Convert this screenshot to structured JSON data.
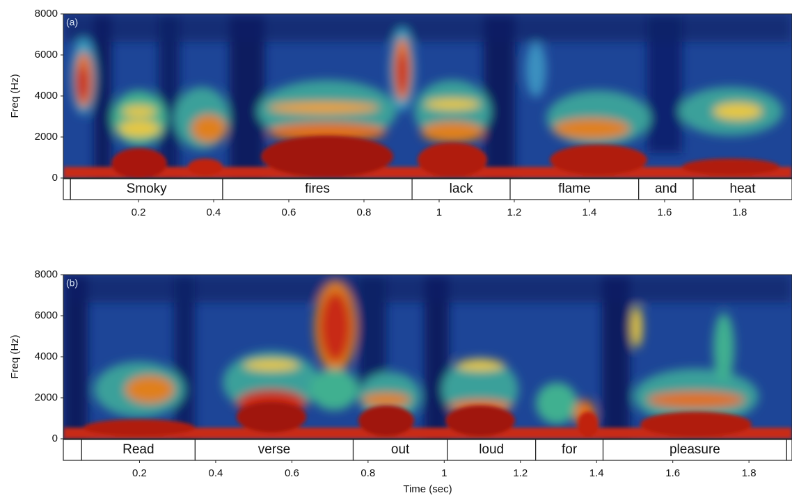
{
  "chart_data": [
    {
      "type": "spectrogram",
      "panel_label": "(a)",
      "ylabel": "Freq (Hz)",
      "ylim": [
        0,
        8000
      ],
      "yticks": [
        0,
        2000,
        4000,
        6000,
        8000
      ],
      "xlim": [
        0,
        1.939
      ],
      "xticks": [
        0.2,
        0.4,
        0.6,
        0.8,
        1,
        1.2,
        1.4,
        1.6,
        1.8
      ],
      "segments": [
        {
          "label": null,
          "start": 0,
          "end": 0.019
        },
        {
          "label": "Smoky",
          "start": 0.019,
          "end": 0.424
        },
        {
          "label": "fires",
          "start": 0.424,
          "end": 0.928
        },
        {
          "label": "lack",
          "start": 0.928,
          "end": 1.189
        },
        {
          "label": "flame",
          "start": 1.189,
          "end": 1.531
        },
        {
          "label": "and",
          "start": 1.531,
          "end": 1.676
        },
        {
          "label": "heat",
          "start": 1.676,
          "end": 1.939
        }
      ]
    },
    {
      "type": "spectrogram",
      "panel_label": "(b)",
      "ylabel": "Freq (Hz)",
      "xlabel": "Time (sec)",
      "ylim": [
        0,
        8000
      ],
      "yticks": [
        0,
        2000,
        4000,
        6000,
        8000
      ],
      "xlim": [
        0,
        1.913
      ],
      "xticks": [
        0.2,
        0.4,
        0.6,
        0.8,
        1,
        1.2,
        1.4,
        1.6,
        1.8
      ],
      "segments": [
        {
          "label": null,
          "start": 0,
          "end": 0.048
        },
        {
          "label": "Read",
          "start": 0.048,
          "end": 0.346
        },
        {
          "label": "verse",
          "start": 0.346,
          "end": 0.761
        },
        {
          "label": "out",
          "start": 0.761,
          "end": 1.008
        },
        {
          "label": "loud",
          "start": 1.008,
          "end": 1.24
        },
        {
          "label": "for",
          "start": 1.24,
          "end": 1.417
        },
        {
          "label": "pleasure",
          "start": 1.417,
          "end": 1.899
        },
        {
          "label": null,
          "start": 1.899,
          "end": 1.913
        }
      ]
    }
  ]
}
